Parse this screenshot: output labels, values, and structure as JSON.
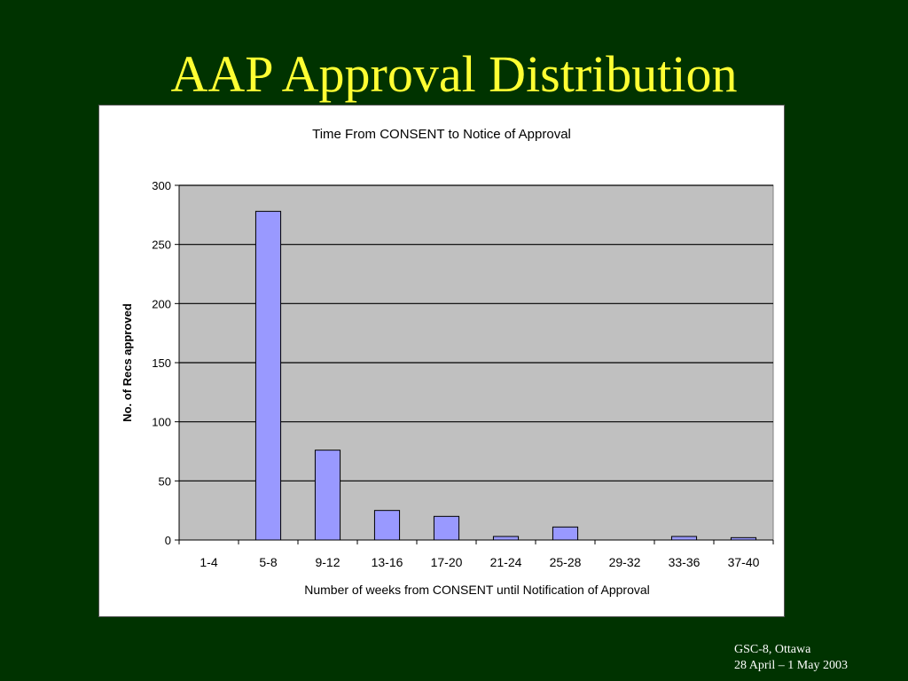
{
  "slide": {
    "title": "AAP Approval Distribution",
    "footer_line1": "GSC-8, Ottawa",
    "footer_line2": "28 April – 1 May 2003"
  },
  "colors": {
    "background": "#003300",
    "title": "#ffff33",
    "plot_area": "#c0c0c0",
    "bar_fill": "#9999ff",
    "bar_stroke": "#000000"
  },
  "chart_data": {
    "type": "bar",
    "title": "Time From CONSENT to Notice of Approval",
    "xlabel": "Number of weeks from CONSENT until Notification of Approval",
    "ylabel": "No. of Recs approved",
    "categories": [
      "1-4",
      "5-8",
      "9-12",
      "13-16",
      "17-20",
      "21-24",
      "25-28",
      "29-32",
      "33-36",
      "37-40"
    ],
    "values": [
      0,
      278,
      76,
      25,
      20,
      3,
      11,
      0,
      3,
      2
    ],
    "ylim": [
      0,
      300
    ],
    "yticks": [
      0,
      50,
      100,
      150,
      200,
      250,
      300
    ],
    "grid": true,
    "legend": "none"
  }
}
